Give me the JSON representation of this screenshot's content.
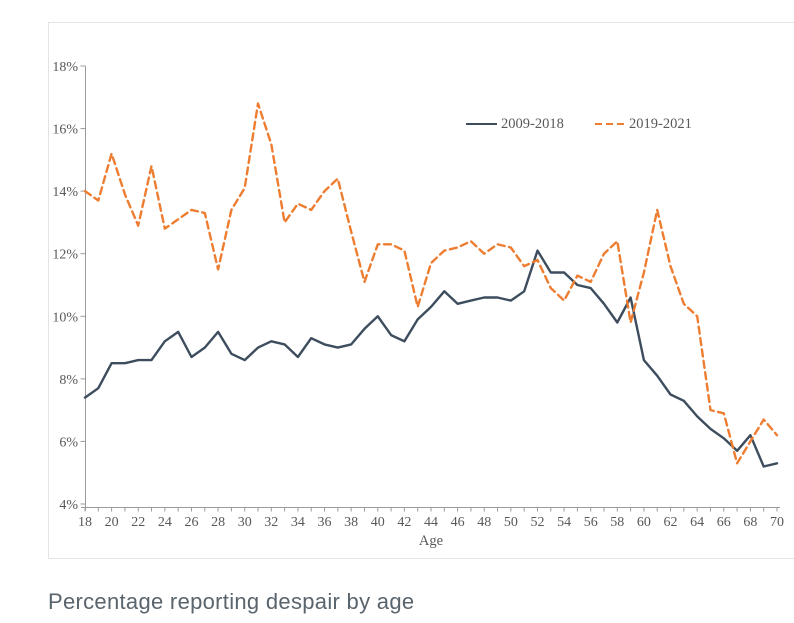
{
  "caption": "Percentage reporting despair by age",
  "legend": {
    "items": [
      {
        "label": "2009-2018",
        "style": "solid",
        "color": "#3d4d5e"
      },
      {
        "label": "2019-2021",
        "style": "dashed",
        "color": "#ed7d31"
      }
    ]
  },
  "chart_data": {
    "type": "line",
    "xlabel": "Age",
    "ylim": [
      4,
      18
    ],
    "grid": false,
    "legend_position": "upper-right-inside",
    "y_ticks": [
      4,
      6,
      8,
      10,
      12,
      14,
      16,
      18
    ],
    "y_tick_labels": [
      "4%",
      "6%",
      "8%",
      "10%",
      "12%",
      "14%",
      "16%",
      "18%"
    ],
    "x_tick_labels": [
      "18",
      "20",
      "22",
      "24",
      "26",
      "28",
      "30",
      "32",
      "34",
      "36",
      "38",
      "40",
      "42",
      "44",
      "46",
      "48",
      "50",
      "52",
      "54",
      "56",
      "58",
      "60",
      "62",
      "64",
      "66",
      "68",
      "70"
    ],
    "x": [
      18,
      19,
      20,
      21,
      22,
      23,
      24,
      25,
      26,
      27,
      28,
      29,
      30,
      31,
      32,
      33,
      34,
      35,
      36,
      37,
      38,
      39,
      40,
      41,
      42,
      43,
      44,
      45,
      46,
      47,
      48,
      49,
      50,
      51,
      52,
      53,
      54,
      55,
      56,
      57,
      58,
      59,
      60,
      61,
      62,
      63,
      64,
      65,
      66,
      67,
      68,
      69,
      70
    ],
    "series": [
      {
        "name": "2009-2018",
        "color": "#3d4d5e",
        "style": "solid",
        "values": [
          7.4,
          7.7,
          8.5,
          8.5,
          8.6,
          8.6,
          9.2,
          9.5,
          8.7,
          9.0,
          9.5,
          8.8,
          8.6,
          9.0,
          9.2,
          9.1,
          8.7,
          9.3,
          9.1,
          9.0,
          9.1,
          9.6,
          10.0,
          9.4,
          9.2,
          9.9,
          10.3,
          10.8,
          10.4,
          10.5,
          10.6,
          10.6,
          10.5,
          10.8,
          12.1,
          11.4,
          11.4,
          11.0,
          10.9,
          10.4,
          9.8,
          10.6,
          8.6,
          8.1,
          7.5,
          7.3,
          6.8,
          6.4,
          6.1,
          5.7,
          6.2,
          5.2,
          5.3
        ]
      },
      {
        "name": "2019-2021",
        "color": "#ed7d31",
        "style": "dashed",
        "values": [
          14.0,
          13.7,
          15.2,
          13.9,
          12.9,
          14.8,
          12.8,
          13.1,
          13.4,
          13.3,
          11.5,
          13.4,
          14.1,
          16.8,
          15.5,
          13.0,
          13.6,
          13.4,
          14.0,
          14.4,
          12.7,
          11.1,
          12.3,
          12.3,
          12.1,
          10.3,
          11.7,
          12.1,
          12.2,
          12.4,
          12.0,
          12.3,
          12.2,
          11.6,
          11.8,
          10.9,
          10.5,
          11.3,
          11.1,
          12.0,
          12.4,
          9.8,
          11.4,
          13.4,
          11.6,
          10.4,
          10.0,
          7.0,
          6.9,
          5.3,
          6.0,
          6.7,
          6.2
        ]
      }
    ]
  }
}
